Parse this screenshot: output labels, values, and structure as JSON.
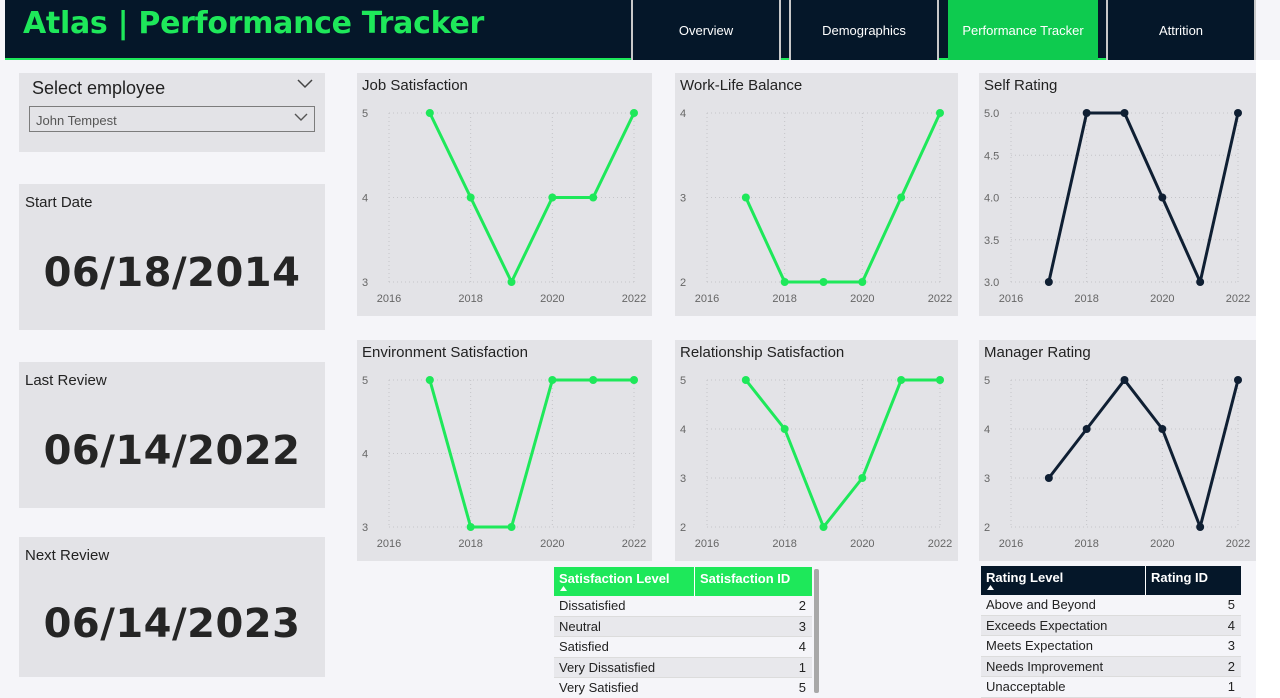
{
  "app": {
    "title": "Atlas | Performance Tracker",
    "accent_color": "#1ee85a",
    "dark_color": "#051729"
  },
  "nav": {
    "tabs": [
      {
        "label": "Overview",
        "active": false
      },
      {
        "label": "Demographics",
        "active": false
      },
      {
        "label": "Performance Tracker",
        "active": true
      },
      {
        "label": "Attrition",
        "active": false
      }
    ]
  },
  "slicer": {
    "title": "Select employee",
    "value": "John Tempest",
    "icon": "chevron-down-icon"
  },
  "cards": {
    "start": {
      "label": "Start Date",
      "value": "06/18/2014"
    },
    "last": {
      "label": "Last Review",
      "value": "06/14/2022"
    },
    "next": {
      "label": "Next Review",
      "value": "06/14/2023"
    }
  },
  "chart_data": [
    {
      "type": "line",
      "title": "Job Satisfaction",
      "x": [
        2017,
        2018,
        2019,
        2020,
        2021,
        2022
      ],
      "values": [
        5,
        4,
        3,
        4,
        4,
        5
      ],
      "xlim": [
        2016,
        2022
      ],
      "ylim": [
        3,
        5
      ],
      "xticks": [
        "2016",
        "2018",
        "2020",
        "2022"
      ],
      "yticks": [
        "3",
        "4",
        "5"
      ],
      "color": "#1ee85a",
      "grid": true
    },
    {
      "type": "line",
      "title": "Work-Life Balance",
      "x": [
        2017,
        2018,
        2019,
        2020,
        2021,
        2022
      ],
      "values": [
        3,
        2,
        2,
        2,
        3,
        4
      ],
      "xlim": [
        2016,
        2022
      ],
      "ylim": [
        2,
        4
      ],
      "xticks": [
        "2016",
        "2018",
        "2020",
        "2022"
      ],
      "yticks": [
        "2",
        "3",
        "4"
      ],
      "color": "#1ee85a",
      "grid": true
    },
    {
      "type": "line",
      "title": "Self Rating",
      "x": [
        2017,
        2018,
        2019,
        2020,
        2021,
        2022
      ],
      "values": [
        3,
        5,
        5,
        4,
        3,
        5
      ],
      "xlim": [
        2016,
        2022
      ],
      "ylim": [
        3,
        5
      ],
      "xticks": [
        "2016",
        "2018",
        "2020",
        "2022"
      ],
      "yticks": [
        "3.0",
        "3.5",
        "4.0",
        "4.5",
        "5.0"
      ],
      "color": "#0f1f33",
      "grid": true
    },
    {
      "type": "line",
      "title": "Environment Satisfaction",
      "x": [
        2017,
        2018,
        2019,
        2020,
        2021,
        2022
      ],
      "values": [
        5,
        3,
        3,
        5,
        5,
        5
      ],
      "xlim": [
        2016,
        2022
      ],
      "ylim": [
        3,
        5
      ],
      "xticks": [
        "2016",
        "2018",
        "2020",
        "2022"
      ],
      "yticks": [
        "3",
        "4",
        "5"
      ],
      "color": "#1ee85a",
      "grid": true
    },
    {
      "type": "line",
      "title": "Relationship Satisfaction",
      "x": [
        2017,
        2018,
        2019,
        2020,
        2021,
        2022
      ],
      "values": [
        5,
        4,
        2,
        3,
        5,
        5
      ],
      "xlim": [
        2016,
        2022
      ],
      "ylim": [
        2,
        5
      ],
      "xticks": [
        "2016",
        "2018",
        "2020",
        "2022"
      ],
      "yticks": [
        "2",
        "3",
        "4",
        "5"
      ],
      "color": "#1ee85a",
      "grid": true
    },
    {
      "type": "line",
      "title": "Manager Rating",
      "x": [
        2017,
        2018,
        2019,
        2020,
        2021,
        2022
      ],
      "values": [
        3,
        4,
        5,
        4,
        2,
        5
      ],
      "xlim": [
        2016,
        2022
      ],
      "ylim": [
        2,
        5
      ],
      "xticks": [
        "2016",
        "2018",
        "2020",
        "2022"
      ],
      "yticks": [
        "2",
        "3",
        "4",
        "5"
      ],
      "color": "#0f1f33",
      "grid": true
    }
  ],
  "satisfaction_table": {
    "headers": [
      "Satisfaction Level",
      "Satisfaction ID"
    ],
    "sort_icon": "sort-up-icon",
    "rows": [
      [
        "Dissatisfied",
        "2"
      ],
      [
        "Neutral",
        "3"
      ],
      [
        "Satisfied",
        "4"
      ],
      [
        "Very Dissatisfied",
        "1"
      ],
      [
        "Very Satisfied",
        "5"
      ]
    ],
    "header_color": "#1ee85a"
  },
  "rating_table": {
    "headers": [
      "Rating Level",
      "Rating ID"
    ],
    "sort_icon": "sort-up-icon",
    "rows": [
      [
        "Above and Beyond",
        "5"
      ],
      [
        "Exceeds Expectation",
        "4"
      ],
      [
        "Meets Expectation",
        "3"
      ],
      [
        "Needs Improvement",
        "2"
      ],
      [
        "Unacceptable",
        "1"
      ]
    ],
    "header_color": "#051729"
  }
}
